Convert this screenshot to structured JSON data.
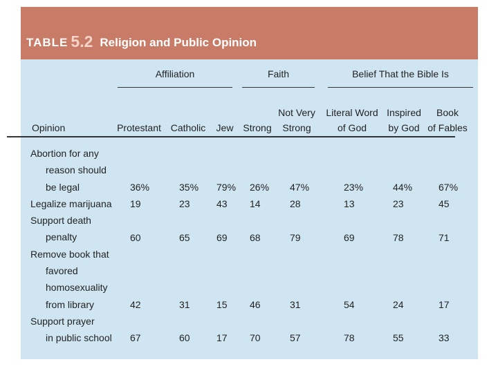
{
  "table": {
    "label_word": "TABLE",
    "label_number": "5.2",
    "title": "Religion and Public Opinion",
    "groups": [
      {
        "label": "Affiliation"
      },
      {
        "label": "Faith"
      },
      {
        "label": "Belief That the Bible Is"
      }
    ],
    "opinion_header": "Opinion",
    "columns": [
      {
        "line1": "",
        "line2": "Protestant"
      },
      {
        "line1": "",
        "line2": "Catholic"
      },
      {
        "line1": "",
        "line2": "Jew"
      },
      {
        "line1": "",
        "line2": "Strong"
      },
      {
        "line1": "Not Very",
        "line2": "Strong"
      },
      {
        "line1": "Literal Word",
        "line2": "of God"
      },
      {
        "line1": "Inspired",
        "line2": "by God"
      },
      {
        "line1": "Book",
        "line2": "of Fables"
      }
    ],
    "rows": [
      {
        "label": [
          "Abortion for any",
          "reason should",
          "be legal"
        ],
        "values": [
          "36%",
          "35%",
          "79%",
          "26%",
          "47%",
          "23%",
          "44%",
          "67%"
        ]
      },
      {
        "label": [
          "Legalize marijuana"
        ],
        "values": [
          "19",
          "23",
          "43",
          "14",
          "28",
          "13",
          "23",
          "45"
        ]
      },
      {
        "label": [
          "Support death",
          "penalty"
        ],
        "values": [
          "60",
          "65",
          "69",
          "68",
          "79",
          "69",
          "78",
          "71"
        ]
      },
      {
        "label": [
          "Remove book that",
          "favored",
          "homosexuality",
          "from library"
        ],
        "values": [
          "42",
          "31",
          "15",
          "46",
          "31",
          "54",
          "24",
          "17"
        ]
      },
      {
        "label": [
          "Support prayer",
          "in public school"
        ],
        "values": [
          "67",
          "60",
          "17",
          "70",
          "57",
          "78",
          "55",
          "33"
        ]
      }
    ]
  }
}
